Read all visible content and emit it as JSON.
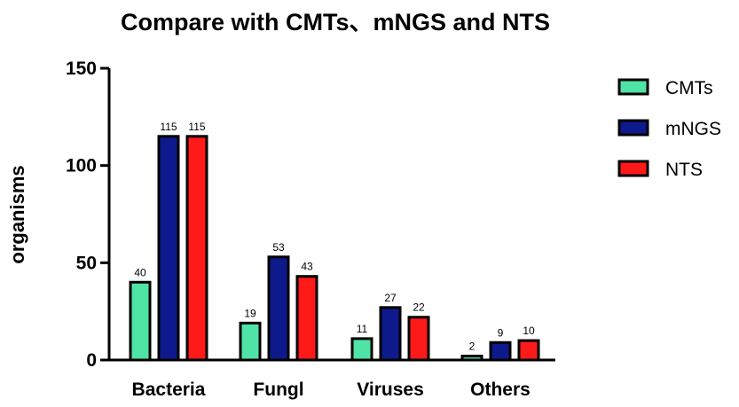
{
  "chart_data": {
    "type": "bar",
    "title": "Compare with CMTs、mNGS and NTS",
    "xlabel": "",
    "ylabel": "organisms",
    "categories": [
      "Bacteria",
      "Fungl",
      "Viruses",
      "Others"
    ],
    "ylim": [
      0,
      150
    ],
    "yticks": [
      0,
      50,
      100,
      150
    ],
    "grid": false,
    "legend_position": "right",
    "series": [
      {
        "name": "CMTs",
        "color": "#4fe3a6",
        "values": [
          40,
          19,
          11,
          2
        ]
      },
      {
        "name": "mNGS",
        "color": "#0e1a8c",
        "values": [
          115,
          53,
          27,
          9
        ]
      },
      {
        "name": "NTS",
        "color": "#ff1a1a",
        "values": [
          115,
          43,
          22,
          10
        ]
      }
    ]
  }
}
